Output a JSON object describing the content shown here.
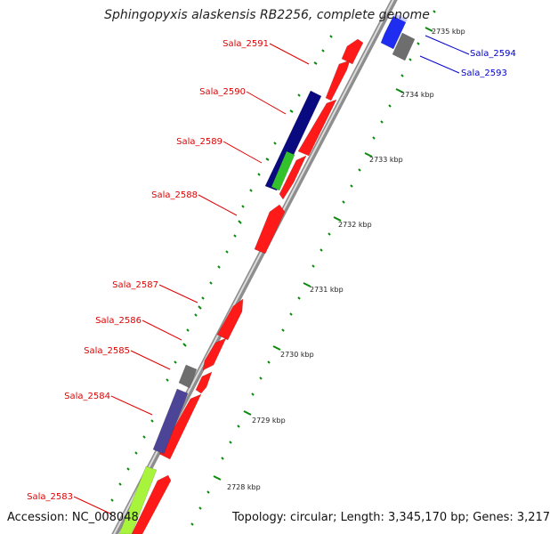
{
  "title": "Sphingopyxis alaskensis RB2256, complete genome",
  "footer": {
    "accession": "Accession: NC_008048",
    "summary": "Topology: circular; Length: 3,345,170 bp; Genes: 3,217"
  },
  "colors": {
    "red_gene": "#ff1a1a",
    "navy_gene": "#0a0a80",
    "slate_gene": "#4c4496",
    "green_gene": "#34c22c",
    "lime_gene": "#a8f43c",
    "grey_gene": "#6e6e6e",
    "blue_gene": "#1f2df0",
    "label_red": "#e00000",
    "label_blue": "#0000d0",
    "tick_green": "#0a8a0a",
    "backbone": "#9a9a9a"
  },
  "scale_labels": [
    "2735 kbp",
    "2734 kbp",
    "2733 kbp",
    "2732 kbp",
    "2731 kbp",
    "2730 kbp",
    "2729 kbp",
    "2728 kbp"
  ],
  "gene_labels": [
    {
      "name": "Sala_2591",
      "color": "red"
    },
    {
      "name": "Sala_2590",
      "color": "red"
    },
    {
      "name": "Sala_2589",
      "color": "red"
    },
    {
      "name": "Sala_2588",
      "color": "red"
    },
    {
      "name": "Sala_2587",
      "color": "red"
    },
    {
      "name": "Sala_2586",
      "color": "red"
    },
    {
      "name": "Sala_2585",
      "color": "red"
    },
    {
      "name": "Sala_2584",
      "color": "red"
    },
    {
      "name": "Sala_2583",
      "color": "red"
    },
    {
      "name": "Sala_2594",
      "color": "blue"
    },
    {
      "name": "Sala_2593",
      "color": "blue"
    }
  ]
}
